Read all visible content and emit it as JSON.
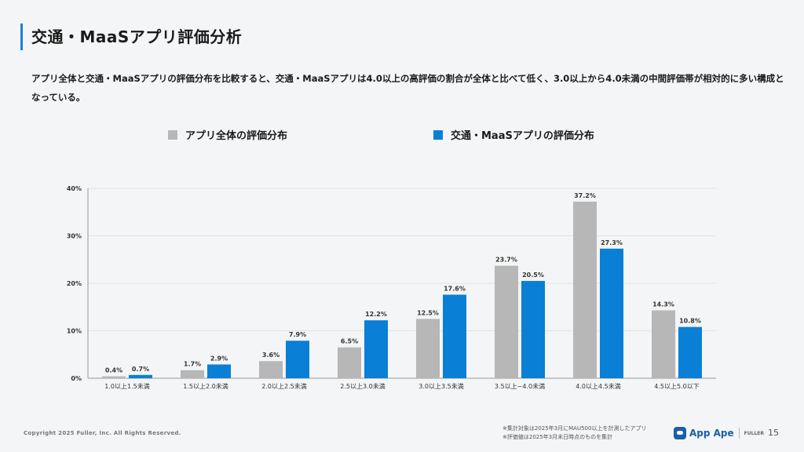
{
  "header": {
    "title": "交通・MaaSアプリ評価分析",
    "summary": "アプリ全体と交通・MaaSアプリの評価分布を比較すると、交通・MaaSアプリは4.0以上の高評価の割合が全体と比べて低く、3.0以上から4.0未満の中間評価帯が相対的に多い構成となっている。"
  },
  "colors": {
    "accent": "#1b7fd4",
    "series_all": "#b7b7b7",
    "series_maas": "#0a7fd6"
  },
  "chart_data": {
    "type": "bar",
    "categories": [
      "1.0以上1.5未満",
      "1.5以上2.0未満",
      "2.0以上2.5未満",
      "2.5以上3.0未満",
      "3.0以上3.5未満",
      "3.5以上~4.0未満",
      "4.0以上4.5未満",
      "4.5以上5.0以下"
    ],
    "series": [
      {
        "name": "アプリ全体の評価分布",
        "values": [
          0.4,
          1.7,
          3.6,
          6.5,
          12.5,
          23.7,
          37.2,
          14.3
        ]
      },
      {
        "name": "交通・MaaSアプリの評価分布",
        "values": [
          0.7,
          2.9,
          7.9,
          12.2,
          17.6,
          20.5,
          27.3,
          10.8
        ]
      }
    ],
    "ylim": [
      0,
      40
    ],
    "yticks": [
      0,
      10,
      20,
      30,
      40
    ],
    "unit": "%",
    "grid": true,
    "legend": "top"
  },
  "footer": {
    "copyright": "Copyright 2025 Fuller, Inc. All Rights Reserved.",
    "notes": [
      "※集計対象は2025年3月にMAU500以上を計測したアプリ",
      "※評価値は2025年3月末日時点のものを集計"
    ],
    "logo_text": "App Ape",
    "logo_sub": "FULLER",
    "page_number": "15"
  }
}
